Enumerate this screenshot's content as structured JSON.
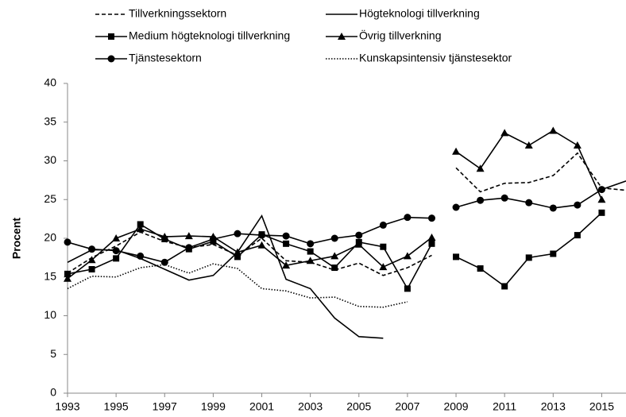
{
  "chart_data": {
    "type": "line",
    "ylabel": "Procent",
    "x": [
      1993,
      1994,
      1995,
      1996,
      1997,
      1998,
      1999,
      2000,
      2001,
      2002,
      2003,
      2004,
      2005,
      2006,
      2007,
      2008,
      null,
      2009,
      2010,
      2011,
      2012,
      2013,
      2014,
      2015,
      2016
    ],
    "xlim": [
      1993,
      2016
    ],
    "xticks": [
      1993,
      1995,
      1997,
      1999,
      2001,
      2003,
      2005,
      2007,
      2009,
      2011,
      2013,
      2015
    ],
    "ylim": [
      0,
      40
    ],
    "yticks": [
      0,
      5,
      10,
      15,
      20,
      25,
      30,
      35,
      40
    ],
    "grid": false,
    "legend": "top",
    "series": [
      {
        "name": "Tillverkningssektorn",
        "color": "#000000",
        "dash": "dashed",
        "marker": "none",
        "values": [
          15.5,
          17.5,
          19.0,
          20.8,
          19.6,
          18.8,
          19.2,
          17.8,
          20.0,
          17.1,
          16.9,
          15.9,
          16.8,
          15.2,
          16.2,
          17.8,
          null,
          29.1,
          26.0,
          27.1,
          27.2,
          28.1,
          31.0,
          26.5,
          26.2
        ]
      },
      {
        "name": "Högteknologi tillverkning",
        "color": "#000000",
        "dash": "solid",
        "marker": "none",
        "values": [
          16.9,
          18.5,
          18.5,
          17.4,
          16.0,
          14.6,
          15.2,
          18.2,
          22.9,
          14.7,
          13.5,
          9.7,
          7.3,
          7.1,
          null,
          null,
          null,
          null,
          null,
          null,
          null,
          null,
          null,
          26.3,
          27.4
        ]
      },
      {
        "name": "Medium högteknologi tillverkning",
        "color": "#000000",
        "dash": "solid",
        "marker": "square",
        "values": [
          15.4,
          16.0,
          17.4,
          21.8,
          19.9,
          18.6,
          19.6,
          17.6,
          20.5,
          19.3,
          18.3,
          16.2,
          19.5,
          18.9,
          13.5,
          19.3,
          null,
          17.6,
          16.1,
          13.8,
          17.5,
          18.0,
          20.4,
          23.3,
          null
        ]
      },
      {
        "name": "Övrig tillverkning",
        "color": "#000000",
        "dash": "solid",
        "marker": "triangle",
        "values": [
          14.8,
          17.2,
          20.0,
          21.2,
          20.2,
          20.3,
          20.2,
          18.2,
          19.1,
          16.5,
          17.1,
          17.7,
          19.2,
          16.3,
          17.7,
          20.1,
          null,
          31.2,
          29.0,
          33.6,
          32.0,
          33.9,
          32.0,
          25.0,
          null
        ]
      },
      {
        "name": "Tjänstesektorn",
        "color": "#000000",
        "dash": "solid",
        "marker": "circle",
        "values": [
          19.5,
          18.6,
          18.4,
          17.7,
          16.9,
          18.8,
          19.9,
          20.6,
          20.4,
          20.3,
          19.3,
          20.0,
          20.4,
          21.7,
          22.7,
          22.6,
          null,
          24.0,
          24.9,
          25.2,
          24.6,
          23.9,
          24.3,
          26.3,
          null
        ]
      },
      {
        "name": "Kunskapsintensiv tjänstesektor",
        "color": "#000000",
        "dash": "dotted",
        "marker": "none",
        "values": [
          13.5,
          15.1,
          15.0,
          16.2,
          16.6,
          15.5,
          16.7,
          16.1,
          13.5,
          13.2,
          12.3,
          12.4,
          11.2,
          11.1,
          11.8,
          null,
          null,
          null,
          null,
          null,
          null,
          null,
          null,
          null,
          null
        ]
      }
    ]
  }
}
